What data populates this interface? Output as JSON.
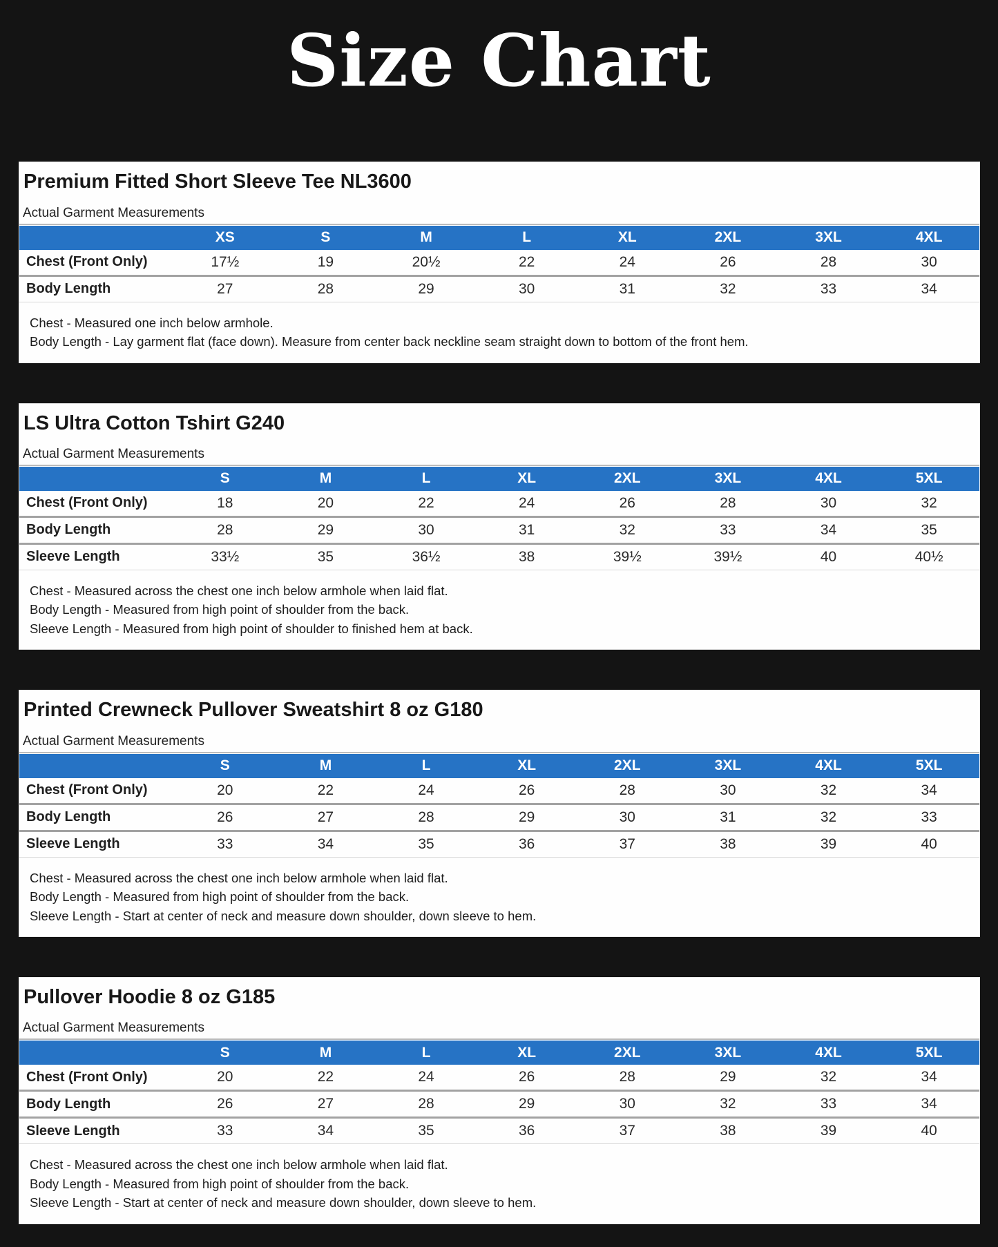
{
  "page": {
    "title": "Size Chart"
  },
  "colors": {
    "accent_blue": "#2673c5",
    "background": "#141414",
    "panel_background": "#fefefe"
  },
  "panels": [
    {
      "title": "Premium Fitted Short Sleeve Tee NL3600",
      "subtitle": "Actual Garment Measurements",
      "sizes": [
        "XS",
        "S",
        "M",
        "L",
        "XL",
        "2XL",
        "3XL",
        "4XL"
      ],
      "rows": [
        {
          "label": "Chest (Front Only)",
          "values": [
            "17½",
            "19",
            "20½",
            "22",
            "24",
            "26",
            "28",
            "30"
          ]
        },
        {
          "label": "Body Length",
          "values": [
            "27",
            "28",
            "29",
            "30",
            "31",
            "32",
            "33",
            "34"
          ]
        }
      ],
      "notes": [
        "Chest - Measured one inch below armhole.",
        "Body Length - Lay garment flat (face down). Measure from center back neckline seam straight down to bottom of the front hem."
      ]
    },
    {
      "title": "LS Ultra Cotton Tshirt G240",
      "subtitle": "Actual Garment Measurements",
      "sizes": [
        "S",
        "M",
        "L",
        "XL",
        "2XL",
        "3XL",
        "4XL",
        "5XL"
      ],
      "rows": [
        {
          "label": "Chest (Front Only)",
          "values": [
            "18",
            "20",
            "22",
            "24",
            "26",
            "28",
            "30",
            "32"
          ]
        },
        {
          "label": "Body Length",
          "values": [
            "28",
            "29",
            "30",
            "31",
            "32",
            "33",
            "34",
            "35"
          ]
        },
        {
          "label": "Sleeve Length",
          "values": [
            "33½",
            "35",
            "36½",
            "38",
            "39½",
            "39½",
            "40",
            "40½"
          ]
        }
      ],
      "notes": [
        "Chest - Measured across the chest one inch below armhole when laid flat.",
        "Body Length - Measured from high point of shoulder from the back.",
        "Sleeve Length - Measured from high point of shoulder to finished hem at back."
      ]
    },
    {
      "title": "Printed Crewneck Pullover Sweatshirt 8 oz G180",
      "subtitle": "Actual Garment Measurements",
      "sizes": [
        "S",
        "M",
        "L",
        "XL",
        "2XL",
        "3XL",
        "4XL",
        "5XL"
      ],
      "rows": [
        {
          "label": "Chest (Front Only)",
          "values": [
            "20",
            "22",
            "24",
            "26",
            "28",
            "30",
            "32",
            "34"
          ]
        },
        {
          "label": "Body Length",
          "values": [
            "26",
            "27",
            "28",
            "29",
            "30",
            "31",
            "32",
            "33"
          ]
        },
        {
          "label": "Sleeve Length",
          "values": [
            "33",
            "34",
            "35",
            "36",
            "37",
            "38",
            "39",
            "40"
          ]
        }
      ],
      "notes": [
        "Chest - Measured across the chest one inch below armhole when laid flat.",
        "Body Length - Measured from high point of shoulder from the back.",
        "Sleeve Length - Start at center of neck and measure down shoulder, down sleeve to hem."
      ]
    },
    {
      "title": "Pullover Hoodie 8 oz G185",
      "subtitle": "Actual Garment Measurements",
      "sizes": [
        "S",
        "M",
        "L",
        "XL",
        "2XL",
        "3XL",
        "4XL",
        "5XL"
      ],
      "rows": [
        {
          "label": "Chest (Front Only)",
          "values": [
            "20",
            "22",
            "24",
            "26",
            "28",
            "29",
            "32",
            "34"
          ]
        },
        {
          "label": "Body Length",
          "values": [
            "26",
            "27",
            "28",
            "29",
            "30",
            "32",
            "33",
            "34"
          ]
        },
        {
          "label": "Sleeve Length",
          "values": [
            "33",
            "34",
            "35",
            "36",
            "37",
            "38",
            "39",
            "40"
          ]
        }
      ],
      "notes": [
        "Chest - Measured across the chest one inch below armhole when laid flat.",
        "Body Length - Measured from high point of shoulder from the back.",
        "Sleeve Length - Start at center of neck and measure down shoulder, down sleeve to hem."
      ]
    }
  ]
}
